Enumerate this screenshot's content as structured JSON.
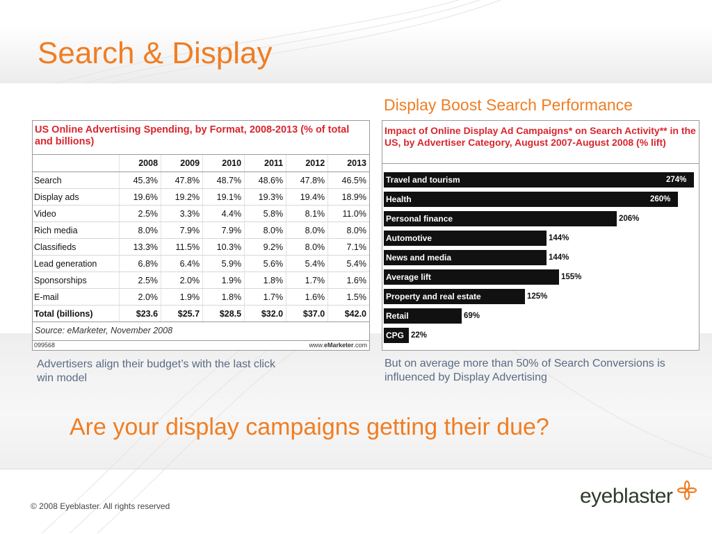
{
  "slide": {
    "title": "Search & Display",
    "subtitle": "Display Boost Search Performance",
    "caption_left": "Advertisers align their budget’s with the last click win model",
    "caption_right": "But on average more than 50% of Search Conversions is influenced by Display Advertising",
    "question": "Are your display campaigns getting their due?",
    "copyright": "© 2008 Eyeblaster. All rights reserved",
    "logo_text": "eyeblaster",
    "accent_color": "#f07d22",
    "headline_red": "#d8262e"
  },
  "table": {
    "title": "US Online Advertising Spending, by Format, 2008-2013 (% of total and billions)",
    "headers": [
      "",
      "2008",
      "2009",
      "2010",
      "2011",
      "2012",
      "2013"
    ],
    "rows": [
      {
        "label": "Search",
        "values": [
          "45.3%",
          "47.8%",
          "48.7%",
          "48.6%",
          "47.8%",
          "46.5%"
        ]
      },
      {
        "label": "Display ads",
        "values": [
          "19.6%",
          "19.2%",
          "19.1%",
          "19.3%",
          "19.4%",
          "18.9%"
        ]
      },
      {
        "label": "Video",
        "values": [
          "2.5%",
          "3.3%",
          "4.4%",
          "5.8%",
          "8.1%",
          "11.0%"
        ]
      },
      {
        "label": "Rich media",
        "values": [
          "8.0%",
          "7.9%",
          "7.9%",
          "8.0%",
          "8.0%",
          "8.0%"
        ]
      },
      {
        "label": "Classifieds",
        "values": [
          "13.3%",
          "11.5%",
          "10.3%",
          "9.2%",
          "8.0%",
          "7.1%"
        ]
      },
      {
        "label": "Lead generation",
        "values": [
          "6.8%",
          "6.4%",
          "5.9%",
          "5.6%",
          "5.4%",
          "5.4%"
        ]
      },
      {
        "label": "Sponsorships",
        "values": [
          "2.5%",
          "2.0%",
          "1.9%",
          "1.8%",
          "1.7%",
          "1.6%"
        ]
      },
      {
        "label": "E-mail",
        "values": [
          "2.0%",
          "1.9%",
          "1.8%",
          "1.7%",
          "1.6%",
          "1.5%"
        ]
      },
      {
        "label": "Total (billions)",
        "values": [
          "$23.6",
          "$25.7",
          "$28.5",
          "$32.0",
          "$37.0",
          "$42.0"
        ]
      }
    ],
    "source": "Source: eMarketer, November 2008",
    "id": "099568",
    "website_prefix": "www.",
    "website_brand": "eMarketer",
    "website_suffix": ".com"
  },
  "chart_data": {
    "type": "bar",
    "orientation": "horizontal",
    "title": "Impact of Online Display Ad Campaigns* on Search Activity** in the US, by Advertiser Category, August 2007-August 2008 (% lift)",
    "categories": [
      "Travel and tourism",
      "Health",
      "Personal finance",
      "Automotive",
      "News and media",
      "Average lift",
      "Property and real estate",
      "Retail",
      "CPG"
    ],
    "values": [
      274,
      260,
      206,
      144,
      144,
      155,
      125,
      69,
      22
    ],
    "value_labels": [
      "274%",
      "260%",
      "206%",
      "144%",
      "144%",
      "155%",
      "125%",
      "69%",
      "22%"
    ],
    "xlim": [
      0,
      274
    ],
    "bar_color": "#111111"
  }
}
